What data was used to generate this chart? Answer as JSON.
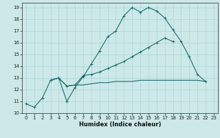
{
  "xlabel": "Humidex (Indice chaleur)",
  "xlim": [
    -0.5,
    23.5
  ],
  "ylim": [
    10,
    19.4
  ],
  "xticks": [
    0,
    1,
    2,
    3,
    4,
    5,
    6,
    7,
    8,
    9,
    10,
    11,
    12,
    13,
    14,
    15,
    16,
    17,
    18,
    19,
    20,
    21,
    22,
    23
  ],
  "yticks": [
    10,
    11,
    12,
    13,
    14,
    15,
    16,
    17,
    18,
    19
  ],
  "bg_color": "#cce8e8",
  "line_color": "#1a6b6b",
  "grid_color": "#aad4d4",
  "line1_x": [
    0,
    1,
    2,
    3,
    4,
    5,
    6,
    7,
    8,
    9,
    10,
    11,
    12,
    13,
    14,
    15,
    16,
    17,
    18,
    19,
    20,
    21,
    22
  ],
  "line1_y": [
    10.8,
    10.5,
    11.3,
    12.8,
    13.0,
    11.0,
    12.2,
    13.1,
    14.2,
    15.3,
    16.5,
    17.0,
    18.3,
    19.0,
    18.6,
    19.0,
    18.7,
    18.1,
    17.1,
    16.1,
    14.8,
    13.3,
    12.7
  ],
  "line2_x": [
    3,
    4,
    5,
    6,
    7,
    8,
    9,
    10,
    11,
    12,
    13,
    14,
    15,
    16,
    17,
    18,
    19,
    20
  ],
  "line2_y": [
    12.8,
    13.0,
    12.3,
    12.4,
    13.2,
    13.3,
    13.5,
    13.8,
    14.1,
    14.4,
    14.8,
    15.2,
    15.6,
    16.0,
    16.4,
    16.1,
    null,
    null
  ],
  "line3_x": [
    3,
    4,
    5,
    6,
    7,
    8,
    9,
    10,
    11,
    12,
    13,
    14,
    15,
    16,
    17,
    18,
    19,
    20,
    21,
    22
  ],
  "line3_y": [
    12.8,
    13.0,
    12.3,
    12.4,
    12.4,
    12.5,
    12.6,
    12.6,
    12.7,
    12.7,
    12.7,
    12.8,
    12.8,
    12.8,
    12.8,
    12.8,
    12.8,
    12.8,
    12.8,
    12.7
  ]
}
